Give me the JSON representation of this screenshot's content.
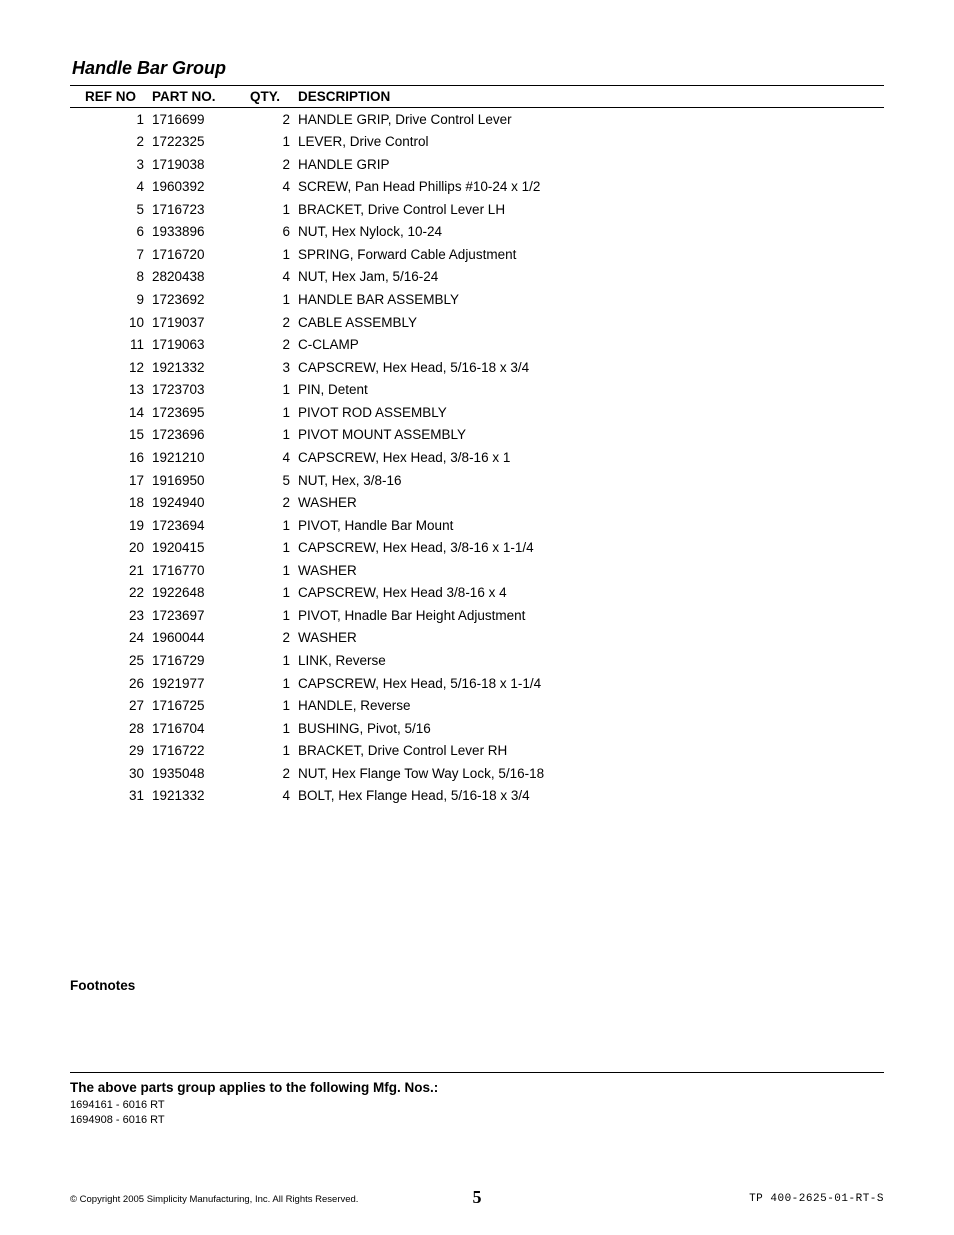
{
  "section_title": "Handle Bar Group",
  "columns": {
    "ref": "REF NO",
    "part": "PART NO.",
    "qty": "QTY.",
    "desc": "DESCRIPTION"
  },
  "rows": [
    [
      "1",
      "1716699",
      "2",
      "HANDLE GRIP, Drive Control Lever"
    ],
    [
      "2",
      "1722325",
      "1",
      "LEVER, Drive Control"
    ],
    [
      "3",
      "1719038",
      "2",
      "HANDLE GRIP"
    ],
    [
      "4",
      "1960392",
      "4",
      "SCREW, Pan Head Phillips #10-24 x 1/2"
    ],
    [
      "5",
      "1716723",
      "1",
      "BRACKET, Drive Control Lever LH"
    ],
    [
      "6",
      "1933896",
      "6",
      "NUT, Hex Nylock, 10-24"
    ],
    [
      "7",
      "1716720",
      "1",
      "SPRING, Forward Cable Adjustment"
    ],
    [
      "8",
      "2820438",
      "4",
      "NUT, Hex Jam, 5/16-24"
    ],
    [
      "9",
      "1723692",
      "1",
      "HANDLE BAR ASSEMBLY"
    ],
    [
      "10",
      "1719037",
      "2",
      "CABLE ASSEMBLY"
    ],
    [
      "11",
      "1719063",
      "2",
      "C-CLAMP"
    ],
    [
      "12",
      "1921332",
      "3",
      "CAPSCREW, Hex Head, 5/16-18 x 3/4"
    ],
    [
      "13",
      "1723703",
      "1",
      "PIN, Detent"
    ],
    [
      "14",
      "1723695",
      "1",
      "PIVOT ROD ASSEMBLY"
    ],
    [
      "15",
      "1723696",
      "1",
      "PIVOT MOUNT ASSEMBLY"
    ],
    [
      "16",
      "1921210",
      "4",
      "CAPSCREW, Hex Head, 3/8-16 x 1"
    ],
    [
      "17",
      "1916950",
      "5",
      "NUT, Hex, 3/8-16"
    ],
    [
      "18",
      "1924940",
      "2",
      "WASHER"
    ],
    [
      "19",
      "1723694",
      "1",
      "PIVOT, Handle Bar Mount"
    ],
    [
      "20",
      "1920415",
      "1",
      "CAPSCREW, Hex Head, 3/8-16 x 1-1/4"
    ],
    [
      "21",
      "1716770",
      "1",
      "WASHER"
    ],
    [
      "22",
      "1922648",
      "1",
      "CAPSCREW, Hex Head 3/8-16 x 4"
    ],
    [
      "23",
      "1723697",
      "1",
      "PIVOT, Hnadle Bar Height Adjustment"
    ],
    [
      "24",
      "1960044",
      "2",
      "WASHER"
    ],
    [
      "25",
      "1716729",
      "1",
      "LINK, Reverse"
    ],
    [
      "26",
      "1921977",
      "1",
      "CAPSCREW, Hex Head, 5/16-18 x 1-1/4"
    ],
    [
      "27",
      "1716725",
      "1",
      "HANDLE, Reverse"
    ],
    [
      "28",
      "1716704",
      "1",
      "BUSHING, Pivot, 5/16"
    ],
    [
      "29",
      "1716722",
      "1",
      "BRACKET, Drive Control Lever RH"
    ],
    [
      "30",
      "1935048",
      "2",
      "NUT, Hex Flange Tow Way Lock, 5/16-18"
    ],
    [
      "31",
      "1921332",
      "4",
      "BOLT, Hex Flange Head, 5/16-18 x 3/4"
    ]
  ],
  "footnotes_label": "Footnotes",
  "applies_label": "The above parts group applies to the following Mfg. Nos.:",
  "mfg_lines": [
    "1694161 - 6016 RT",
    "1694908 - 6016 RT"
  ],
  "copyright": "© Copyright 2005 Simplicity Manufacturing, Inc. All Rights Reserved.",
  "page_number": "5",
  "doc_id": "TP 400-2625-01-RT-S"
}
